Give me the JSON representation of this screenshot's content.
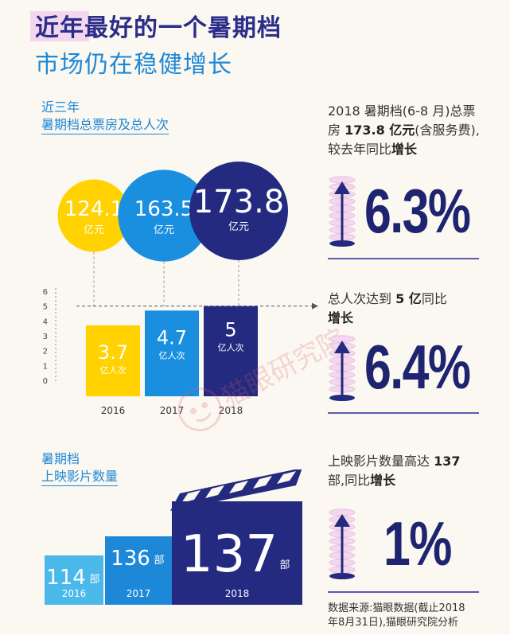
{
  "title": {
    "line1": "近年最好的一个暑期档",
    "line2": "市场仍在稳健增长"
  },
  "section1": {
    "label_line1": "近三年",
    "label_line2": "暑期档总票房及总人次"
  },
  "section2": {
    "label_line1": "暑期档",
    "label_line2": "上映影片数量"
  },
  "right": {
    "stat1_text_a": "2018 暑期档(6-8 月)总票房 ",
    "stat1_text_b": "173.8 亿元",
    "stat1_text_c": "(含服务费),较去年同比",
    "stat1_text_d": "增长",
    "stat1_value": "6.3%",
    "stat2_text_a": "总人次达到 ",
    "stat2_text_b": "5 亿",
    "stat2_text_c": "同比",
    "stat2_text_d": "增长",
    "stat2_value": "6.4%",
    "stat3_text_a": "上映影片数量高达 ",
    "stat3_text_b": "137",
    "stat3_text_c": "部,同比",
    "stat3_text_d": "增长",
    "stat3_value": "1%"
  },
  "source": {
    "line1": "数据来源:猫眼数据(截止2018",
    "line2": "年8月31日),猫眼研究院分析"
  },
  "watermark": "猫眼研究院",
  "colors": {
    "yellow": "#ffd200",
    "blue": "#1a8fe0",
    "navy": "#232a80",
    "light_blue": "#4bb8ea",
    "mid_blue": "#1e88d8",
    "pink": "#f3d7ee"
  },
  "chart_data": [
    {
      "type": "bubble",
      "categories": [
        "2016",
        "2017",
        "2018"
      ],
      "values": [
        124.1,
        163.5,
        173.8
      ],
      "unit": "亿元",
      "labels": [
        "124.1",
        "163.5",
        "173.8"
      ]
    },
    {
      "type": "bar",
      "categories": [
        "2016",
        "2017",
        "2018"
      ],
      "values": [
        3.7,
        4.7,
        5
      ],
      "labels": [
        "3.7",
        "4.7",
        "5"
      ],
      "unit": "亿人次",
      "ylim": [
        0,
        6
      ],
      "yticks": [
        0,
        1,
        2,
        3,
        4,
        5,
        6
      ],
      "reference_line": 5
    },
    {
      "type": "bar",
      "categories": [
        "2016",
        "2017",
        "2018"
      ],
      "values": [
        114,
        136,
        137
      ],
      "labels": [
        "114",
        "136",
        "137"
      ],
      "unit": "部"
    }
  ]
}
